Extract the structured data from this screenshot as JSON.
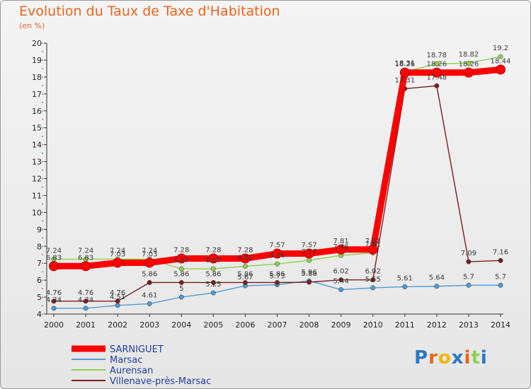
{
  "chart_data": {
    "type": "line",
    "title": "Evolution du Taux de Taxe d'Habitation",
    "subtitle": "(en %)",
    "x": [
      "2000",
      "2001",
      "2002",
      "2003",
      "2004",
      "2005",
      "2006",
      "2007",
      "2008",
      "2009",
      "2010",
      "2011",
      "2012",
      "2013",
      "2014"
    ],
    "ylim": [
      4,
      20
    ],
    "yticks": [
      4,
      5,
      6,
      7,
      8,
      9,
      10,
      11,
      12,
      13,
      14,
      15,
      16,
      17,
      18,
      19,
      20
    ],
    "grid": false,
    "legend_position": "bottom-left",
    "series": [
      {
        "name": "SARNIGUET",
        "color": "#ff0000",
        "values": [
          6.83,
          6.83,
          7.03,
          7.03,
          7.28,
          7.28,
          7.28,
          7.57,
          7.57,
          7.81,
          7.81,
          18.26,
          18.26,
          18.26,
          18.44
        ],
        "labels": [
          "6.83",
          "6.83",
          "7.03",
          "7.03",
          "7.28",
          "7.28",
          "7.28",
          "7.57",
          "7.57",
          "7.81",
          "7.81",
          "18.26",
          "18.26",
          "18.26",
          "18.44"
        ]
      },
      {
        "name": "Marsac",
        "color": "#4f9ad6",
        "values": [
          4.34,
          4.34,
          4.51,
          4.61,
          5.0,
          5.25,
          5.67,
          5.73,
          5.96,
          5.44,
          5.55,
          5.61,
          5.64,
          5.7,
          5.7
        ],
        "labels": [
          "4.34",
          "4.34",
          "4.51",
          "4.61",
          "5",
          "5.25",
          "5.67",
          "5.73",
          "5.96",
          "5.44",
          "5.55",
          "5.61",
          "5.64",
          "5.7",
          "5.7"
        ]
      },
      {
        "name": "Aurensan",
        "color": "#8fd14f",
        "values": [
          7.24,
          7.24,
          7.24,
          7.24,
          6.67,
          6.67,
          6.82,
          6.96,
          7.17,
          7.46,
          7.61,
          18.31,
          18.78,
          18.82,
          19.2
        ],
        "labels": [
          "7.24",
          "7.24",
          "7.24",
          "7.24",
          "6.67",
          "6.67",
          "6.82",
          "6.96",
          "7.17",
          "7.46",
          "7.61",
          "18.31",
          "18.78",
          "18.82",
          "19.2"
        ]
      },
      {
        "name": "Villenave-près-Marsac",
        "color": "#7a1f1f",
        "values": [
          4.76,
          4.76,
          4.76,
          5.86,
          5.86,
          5.86,
          5.86,
          5.86,
          5.88,
          6.02,
          6.02,
          17.31,
          17.48,
          7.09,
          7.16
        ],
        "labels": [
          "4.76",
          "4.76",
          "4.76",
          "5.86",
          "5.86",
          "5.86",
          "5.86",
          "5.86",
          "5.88",
          "6.02",
          "6.02",
          "17.31",
          "17.48",
          "7.09",
          "7.16"
        ]
      }
    ]
  },
  "brand": {
    "letters": [
      "P",
      "r",
      "o",
      "x",
      "i",
      "t",
      "i"
    ],
    "colors": [
      "#2a78c8",
      "#e8651d",
      "#f0b400",
      "#2a78c8",
      "#e8651d",
      "#8fd14f",
      "#2a78c8"
    ]
  }
}
